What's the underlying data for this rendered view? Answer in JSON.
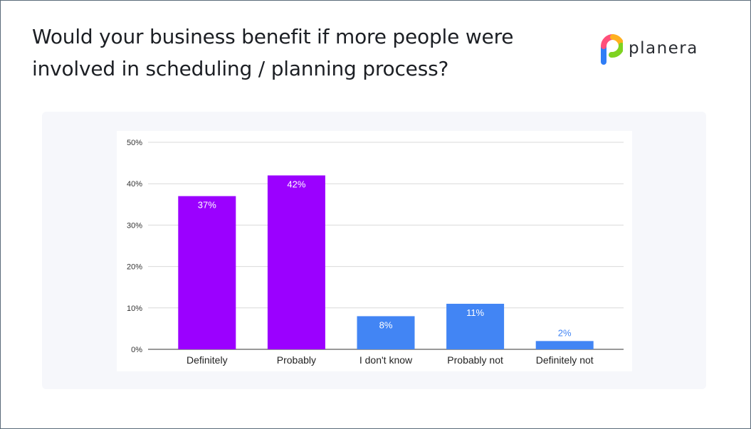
{
  "title": "Would your business benefit if more people were involved in scheduling / planning process?",
  "logo": {
    "text": "planera",
    "icon": "planera-logo-icon"
  },
  "chart_data": {
    "type": "bar",
    "categories": [
      "Definitely",
      "Probably",
      "I don't know",
      "Probably not",
      "Definitely not"
    ],
    "values": [
      37,
      42,
      8,
      11,
      2
    ],
    "data_labels": [
      "37%",
      "42%",
      "8%",
      "11%",
      "2%"
    ],
    "bar_colors": [
      "#9b00ff",
      "#9b00ff",
      "#4285f4",
      "#4285f4",
      "#4285f4"
    ],
    "yticks": [
      "0%",
      "10%",
      "20%",
      "30%",
      "40%",
      "50%"
    ],
    "ylim": [
      0,
      50
    ],
    "grid": true,
    "title": "",
    "xlabel": "",
    "ylabel": ""
  }
}
